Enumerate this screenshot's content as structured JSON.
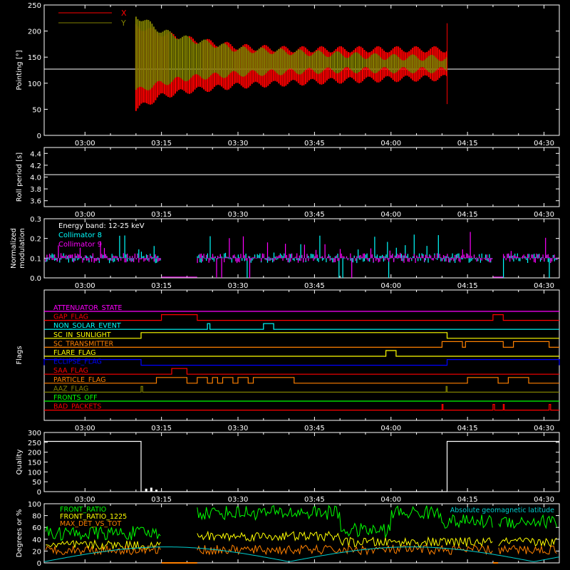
{
  "chart_data": [
    {
      "type": "line",
      "ylabel": "Pointing [°]",
      "ylim": [
        0,
        250
      ],
      "yticks": [
        0,
        50,
        100,
        150,
        200,
        250
      ],
      "xticks": [
        "03:00",
        "03:15",
        "03:30",
        "03:45",
        "04:00",
        "04:15",
        "04:30"
      ],
      "legend": "top-left",
      "legend_entries": [
        "X",
        "Y"
      ],
      "series": [
        {
          "name": "X",
          "color": "#ff0000",
          "x": [
            "03:10",
            "03:15",
            "03:20",
            "03:30",
            "03:40",
            "03:50",
            "04:00",
            "04:11"
          ],
          "y_upper": [
            210,
            195,
            185,
            170,
            165,
            165,
            165,
            165
          ],
          "y_lower": [
            50,
            75,
            85,
            95,
            100,
            105,
            108,
            110
          ]
        },
        {
          "name": "Y",
          "color": "#808000",
          "x": [
            "03:10",
            "03:15",
            "03:20",
            "03:30",
            "03:40",
            "03:50",
            "04:00",
            "04:11"
          ],
          "y_upper": [
            230,
            200,
            185,
            165,
            160,
            155,
            150,
            148
          ],
          "y_lower": [
            85,
            100,
            110,
            118,
            122,
            125,
            125,
            125
          ]
        }
      ],
      "reference_line": 127
    },
    {
      "type": "line",
      "ylabel": "Roll period [s]",
      "ylim": [
        3.5,
        4.5
      ],
      "yticks": [
        "3.6",
        "3.8",
        "4.0",
        "4.2",
        "4.4"
      ],
      "xticks": [
        "03:00",
        "03:15",
        "03:30",
        "03:45",
        "04:00",
        "04:15",
        "04:30"
      ],
      "series": [
        {
          "name": "",
          "color": "#ffffff",
          "value": 4.04
        }
      ]
    },
    {
      "type": "line",
      "ylabel": "Normalized modulation",
      "ylim": [
        0,
        0.3
      ],
      "yticks": [
        "0.0",
        "0.1",
        "0.2",
        "0.3"
      ],
      "xticks": [
        "03:00",
        "03:15",
        "03:30",
        "03:45",
        "04:00",
        "04:15",
        "04:30"
      ],
      "annotation": "Energy band: 12-25 keV",
      "legend": "top-left",
      "series": [
        {
          "name": "Collimator 8",
          "color": "#00ffff",
          "baseline": 0.1
        },
        {
          "name": "Collimator 9",
          "color": "#ff00ff",
          "baseline": 0.1
        }
      ],
      "gaps": [
        [
          "03:15",
          "03:22"
        ],
        [
          "04:20",
          "04:22"
        ]
      ]
    },
    {
      "type": "table",
      "ylabel": "Flags",
      "xticks": [
        "03:00",
        "03:15",
        "03:30",
        "03:45",
        "04:00",
        "04:15",
        "04:30"
      ],
      "flags": [
        {
          "name": "ATTENUATOR_STATE",
          "color": "#ff00ff"
        },
        {
          "name": "GAP_FLAG",
          "color": "#ff0000"
        },
        {
          "name": "NON_SOLAR_EVENT",
          "color": "#00ffff"
        },
        {
          "name": "SC_IN_SUNLIGHT",
          "color": "#ffff00"
        },
        {
          "name": "SC_TRANSMITTER",
          "color": "#ff8000"
        },
        {
          "name": "FLARE_FLAG",
          "color": "#ffff00"
        },
        {
          "name": "ECLIPSE_FLAG",
          "color": "#0000ff"
        },
        {
          "name": "SAA_FLAG",
          "color": "#ff0000"
        },
        {
          "name": "PARTICLE_FLAG",
          "color": "#ff8000"
        },
        {
          "name": "AAZ_FLAG",
          "color": "#808000"
        },
        {
          "name": "FRONTS_OFF",
          "color": "#00ff00"
        },
        {
          "name": "BAD_PACKETS",
          "color": "#ff0000"
        }
      ]
    },
    {
      "type": "line",
      "ylabel": "Quality",
      "ylim": [
        0,
        300
      ],
      "yticks": [
        0,
        50,
        100,
        150,
        200,
        250,
        300
      ],
      "xticks": [
        "03:00",
        "03:15",
        "03:30",
        "03:45",
        "04:00",
        "04:15",
        "04:30"
      ],
      "series": [
        {
          "name": "",
          "color": "#ffffff",
          "x": [
            "02:52",
            "03:11",
            "03:11",
            "04:11",
            "04:11",
            "04:33"
          ],
          "y": [
            255,
            255,
            0,
            0,
            255,
            255
          ]
        }
      ]
    },
    {
      "type": "line",
      "ylabel": "Degrees or %",
      "ylim": [
        0,
        100
      ],
      "yticks": [
        0,
        20,
        40,
        60,
        80,
        100
      ],
      "legend": "top-left",
      "series": [
        {
          "name": "FRONT_RATIO",
          "color": "#00ff00"
        },
        {
          "name": "FRONT_RATIO_1225",
          "color": "#ffff00"
        },
        {
          "name": "MAX_DET_VS_TOT",
          "color": "#ff8000"
        },
        {
          "name": "Absolute geomagnetic latitude",
          "color": "#00cccc"
        }
      ]
    }
  ],
  "colors": {
    "background": "#000000",
    "axes": "#ffffff"
  }
}
